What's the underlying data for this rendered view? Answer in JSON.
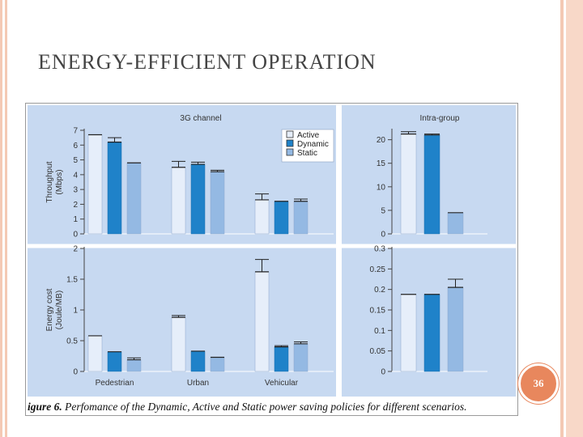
{
  "slide": {
    "title": "ENERGY-EFFICIENT OPERATION",
    "page_number": "36",
    "caption_label": "igure 6.",
    "caption_text": " Perfomance of the Dynamic, Active and Static power saving policies for different scenarios."
  },
  "colors": {
    "panel_bg": "#c7d9f1",
    "active": "#e6eefa",
    "dynamic": "#1f82c9",
    "static": "#94b9e3",
    "frame_border": "#9a9a9a",
    "accent": "#e8875d"
  },
  "chart_data": [
    {
      "type": "bar",
      "panel": "3G channel - throughput",
      "title": "3G channel",
      "ylabel": "Throughput (Mbps)",
      "ylim": [
        0,
        7
      ],
      "yticks": [
        0,
        1,
        2,
        3,
        4,
        5,
        6,
        7
      ],
      "categories": [
        "Pedestrian",
        "Urban",
        "Vehicular"
      ],
      "series": [
        {
          "name": "Active",
          "values": [
            6.7,
            4.5,
            2.3
          ],
          "error": [
            0.0,
            0.4,
            0.4
          ]
        },
        {
          "name": "Dynamic",
          "values": [
            6.2,
            4.7,
            2.2
          ],
          "error": [
            0.3,
            0.15,
            0.0
          ]
        },
        {
          "name": "Static",
          "values": [
            4.8,
            4.2,
            2.2
          ],
          "error": [
            0.0,
            0.1,
            0.15
          ]
        }
      ],
      "legend": {
        "position": "top-right",
        "entries": [
          "Active",
          "Dynamic",
          "Static"
        ]
      }
    },
    {
      "type": "bar",
      "panel": "Intra-group - throughput",
      "title": "Intra-group",
      "ylabel": "",
      "ylim": [
        0,
        22
      ],
      "yticks": [
        0,
        5,
        10,
        15,
        20
      ],
      "categories": [
        ""
      ],
      "series": [
        {
          "name": "Active",
          "values": [
            21.2
          ],
          "error": [
            0.5
          ]
        },
        {
          "name": "Dynamic",
          "values": [
            21.0
          ],
          "error": [
            0.2
          ]
        },
        {
          "name": "Static",
          "values": [
            4.5
          ],
          "error": [
            0.0
          ]
        }
      ]
    },
    {
      "type": "bar",
      "panel": "3G channel - energy cost",
      "title": "",
      "ylabel": "Energy cost (Joule/MB)",
      "ylim": [
        0,
        2
      ],
      "yticks": [
        0,
        0.5,
        1,
        1.5,
        2
      ],
      "ytick_labels": [
        "0",
        "0.5",
        "1",
        "1.5",
        "2"
      ],
      "categories": [
        "Pedestrian",
        "Urban",
        "Vehicular"
      ],
      "series": [
        {
          "name": "Active",
          "values": [
            0.58,
            0.88,
            1.62
          ],
          "error": [
            0.0,
            0.03,
            0.2
          ]
        },
        {
          "name": "Dynamic",
          "values": [
            0.32,
            0.33,
            0.4
          ],
          "error": [
            0.0,
            0.0,
            0.02
          ]
        },
        {
          "name": "Static",
          "values": [
            0.19,
            0.23,
            0.45
          ],
          "error": [
            0.03,
            0.0,
            0.03
          ]
        }
      ]
    },
    {
      "type": "bar",
      "panel": "Intra-group - energy cost",
      "title": "",
      "ylabel": "",
      "ylim": [
        0,
        0.3
      ],
      "yticks": [
        0,
        0.05,
        0.1,
        0.15,
        0.2,
        0.25,
        0.3
      ],
      "ytick_labels": [
        "0",
        "0.05",
        "0.1",
        "0.15",
        "0.2",
        "0.25",
        "0.3"
      ],
      "categories": [
        ""
      ],
      "series": [
        {
          "name": "Active",
          "values": [
            0.188
          ],
          "error": [
            0.0
          ]
        },
        {
          "name": "Dynamic",
          "values": [
            0.188
          ],
          "error": [
            0.0
          ]
        },
        {
          "name": "Static",
          "values": [
            0.205
          ],
          "error": [
            0.02
          ]
        }
      ]
    }
  ]
}
